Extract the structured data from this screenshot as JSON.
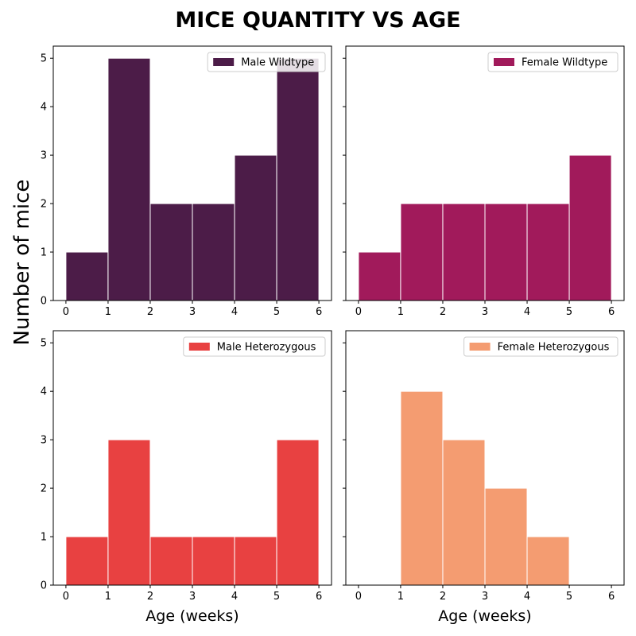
{
  "title": "MICE QUANTITY VS AGE",
  "ylabel": "Number of mice",
  "chart_data": [
    {
      "type": "bar",
      "series_name": "Male Wildtype",
      "color": "#4c1c48",
      "bin_edges": [
        0,
        1,
        2,
        3,
        4,
        5,
        6
      ],
      "values": [
        1,
        5,
        2,
        2,
        3,
        5
      ],
      "xlabel": "",
      "xlim": [
        -0.3,
        6.3
      ],
      "ylim": [
        0,
        5.25
      ],
      "xticks": [
        "0",
        "1",
        "2",
        "3",
        "4",
        "5",
        "6"
      ],
      "yticks": [
        "0",
        "1",
        "2",
        "3",
        "4",
        "5"
      ],
      "legend": "top-right"
    },
    {
      "type": "bar",
      "series_name": "Female Wildtype",
      "color": "#a11a5b",
      "bin_edges": [
        0,
        1,
        2,
        3,
        4,
        5,
        6
      ],
      "values": [
        1,
        2,
        2,
        2,
        2,
        3
      ],
      "xlabel": "",
      "xlim": [
        -0.3,
        6.3
      ],
      "ylim": [
        0,
        5.25
      ],
      "xticks": [
        "0",
        "1",
        "2",
        "3",
        "4",
        "5",
        "6"
      ],
      "yticks": [],
      "legend": "top-right"
    },
    {
      "type": "bar",
      "series_name": "Male Heterozygous",
      "color": "#e84141",
      "bin_edges": [
        0,
        1,
        2,
        3,
        4,
        5,
        6
      ],
      "values": [
        1,
        3,
        1,
        1,
        1,
        3
      ],
      "xlabel": "Age (weeks)",
      "xlim": [
        -0.3,
        6.3
      ],
      "ylim": [
        0,
        5.25
      ],
      "xticks": [
        "0",
        "1",
        "2",
        "3",
        "4",
        "5",
        "6"
      ],
      "yticks": [
        "0",
        "1",
        "2",
        "3",
        "4",
        "5"
      ],
      "legend": "top-right"
    },
    {
      "type": "bar",
      "series_name": "Female Heterozygous",
      "color": "#f49c71",
      "bin_edges": [
        0,
        1,
        2,
        3,
        4,
        5,
        6
      ],
      "values": [
        0,
        4,
        3,
        2,
        1,
        0
      ],
      "xlabel": "Age (weeks)",
      "xlim": [
        -0.3,
        6.3
      ],
      "ylim": [
        0,
        5.25
      ],
      "xticks": [
        "0",
        "1",
        "2",
        "3",
        "4",
        "5",
        "6"
      ],
      "yticks": [],
      "legend": "top-right"
    }
  ]
}
